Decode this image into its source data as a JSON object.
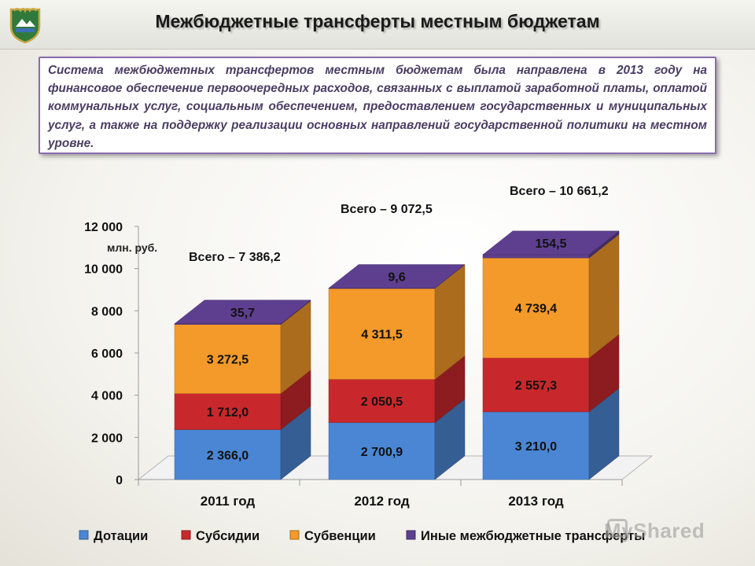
{
  "header": {
    "title": "Межбюджетные трансферты местным бюджетам"
  },
  "intro": {
    "text": "Система межбюджетных трансфертов местным бюджетам была направлена в 2013 году на финансовое обеспечение первоочередных расходов, связанных с выплатой заработной платы, оплатой коммунальных услуг, социальным обеспечением, предоставлением государственных и муниципальных услуг, а также на поддержку реализации основных направлений государственной политики на местном уровне."
  },
  "watermark": {
    "text": "MyShared"
  },
  "colors": {
    "dotacii": "#4a86d4",
    "subsidii": "#c8282c",
    "subvencii": "#f49a2a",
    "inye": "#5e3f8f"
  },
  "chart_data": {
    "type": "bar",
    "stacked": true,
    "three_d": true,
    "unit_label": "млн. руб.",
    "categories": [
      "2011 год",
      "2012 год",
      "2013 год"
    ],
    "yticks": [
      "0",
      "2 000",
      "4 000",
      "6 000",
      "8 000",
      "10 000",
      "12 000"
    ],
    "ylim": [
      0,
      12000
    ],
    "series": [
      {
        "name": "Дотации",
        "color": "#4a86d4",
        "values": [
          2366.0,
          2700.9,
          3210.0
        ],
        "labels": [
          "2 366,0",
          "2 700,9",
          "3 210,0"
        ]
      },
      {
        "name": "Субсидии",
        "color": "#c8282c",
        "values": [
          1712.0,
          2050.5,
          2557.3
        ],
        "labels": [
          "1 712,0",
          "2 050,5",
          "2 557,3"
        ]
      },
      {
        "name": "Субвенции",
        "color": "#f49a2a",
        "values": [
          3272.5,
          4311.5,
          4739.4
        ],
        "labels": [
          "3 272,5",
          "4 311,5",
          "4 739,4"
        ]
      },
      {
        "name": "Иные межбюджетные трансферты",
        "color": "#5e3f8f",
        "values": [
          35.7,
          9.6,
          154.5
        ],
        "labels": [
          "35,7",
          "9,6",
          "154,5"
        ]
      }
    ],
    "totals": [
      "Всего – 7 386,2",
      "Всего – 9 072,5",
      "Всего – 10 661,2"
    ],
    "legend_position": "bottom"
  }
}
